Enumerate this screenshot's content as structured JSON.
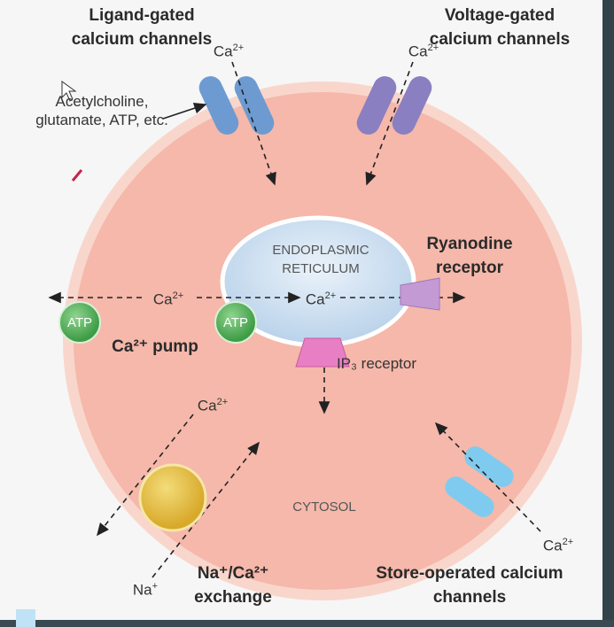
{
  "labels": {
    "ligand_gated": "Ligand-gated calcium channels",
    "voltage_gated": "Voltage-gated calcium channels",
    "ligands": "Acetylcholine, glutamate, ATP, etc.",
    "er": "ENDOPLASMIC RETICULUM",
    "ryanodine": "Ryanodine receptor",
    "ca_pump": "Ca²⁺ pump",
    "atp": "ATP",
    "ip3": "IP₃ receptor",
    "cytosol": "CYTOSOL",
    "exchanger": "Na⁺/Ca²⁺ exchange",
    "store_operated": "Store-operated calcium channels",
    "ca": "Ca²⁺",
    "na": "Na⁺"
  },
  "colors": {
    "cell": "#f5b8aa",
    "cell_border": "#f9d4cb",
    "er": "#d6e6f3",
    "channel_blue": "#6d9bd1",
    "channel_purple": "#8a7fc0",
    "atp_green": "#5dbb63",
    "receptor_pink": "#e87fc4",
    "ryanodine_purple": "#c49ad4",
    "exchanger_yellow": "#e6c34a",
    "store_blue": "#7fcbef"
  }
}
